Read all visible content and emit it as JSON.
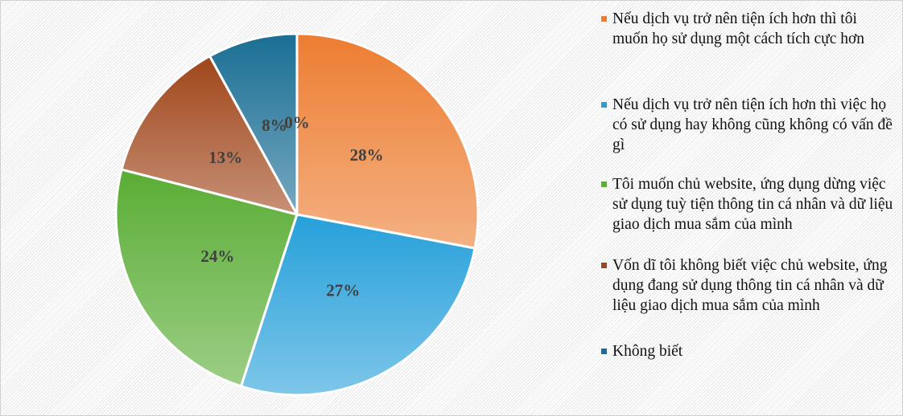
{
  "chart_data": {
    "type": "pie",
    "categories": [
      "Nếu dịch vụ trở nên tiện ích hơn thì tôi muốn họ sử dụng một cách tích cực hơn",
      "Nếu dịch vụ trở nên tiện ích hơn thì việc họ có sử dụng hay không cũng không có vấn đề gì",
      "Tôi muốn chủ website, ứng dụng dừng việc sử dụng tuỳ tiện thông tin cá nhân và dữ liệu giao dịch mua sắm của mình",
      "Vốn dĩ tôi không biết việc chủ website, ứng dụng đang sử dụng thông tin cá nhân và dữ liệu giao dịch mua sắm của mình",
      "Không biết",
      null
    ],
    "values": [
      28,
      27,
      24,
      13,
      8,
      0
    ],
    "value_labels": [
      "28%",
      "27%",
      "24%",
      "13%",
      "8%",
      "0%"
    ],
    "colors": [
      "#ed7d31",
      "#26a0da",
      "#5aad35",
      "#a0461a",
      "#1a6e94",
      "#4472c4"
    ],
    "legend": "right"
  }
}
